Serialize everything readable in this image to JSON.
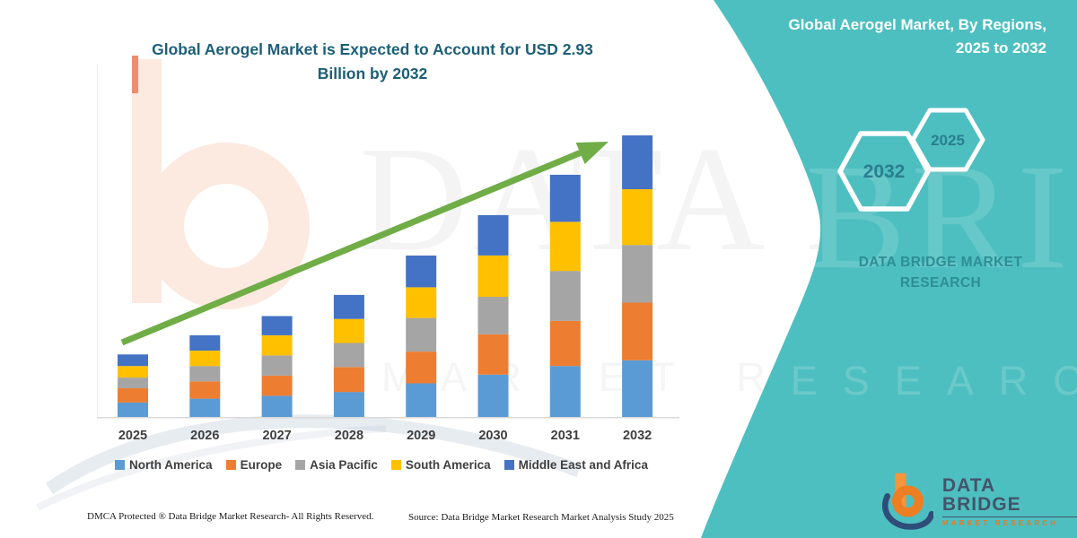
{
  "header": {
    "chart_title_line1": "Global Aerogel Market is Expected to Account for USD 2.93",
    "chart_title_line2": "Billion by 2032"
  },
  "side_panel": {
    "bg_color": "#4EBFC0",
    "title_line1": "Global Aerogel Market, By Regions,",
    "title_line2": "2025 to 2032",
    "hexagons": [
      {
        "label": "2032"
      },
      {
        "label": "2025"
      }
    ],
    "hexagon_text_color": "#2A7E8F",
    "brand_caption": "DATA BRIDGE MARKET RESEARCH",
    "logo": {
      "name": "DATA BRIDGE",
      "tagline": "MARKET RESEARCH"
    }
  },
  "watermark": {
    "big": "DATA BRIDGE",
    "sub": "MARKET RESEARCH"
  },
  "footer": {
    "left": "DMCA Protected ® Data Bridge Market Research-  All Rights Reserved.",
    "right": "Source: Data Bridge Market Research  Market Analysis Study 2025"
  },
  "chart_data": {
    "type": "bar",
    "subtype": "stacked",
    "title": "Global Aerogel Market is Expected to Account for USD 2.93 Billion by 2032",
    "unit": "USD Billion",
    "categories": [
      "2025",
      "2026",
      "2027",
      "2028",
      "2029",
      "2030",
      "2031",
      "2032"
    ],
    "series": [
      {
        "name": "North America",
        "color": "#5B9BD5",
        "values": [
          0.15,
          0.19,
          0.22,
          0.26,
          0.35,
          0.44,
          0.53,
          0.59
        ]
      },
      {
        "name": "Europe",
        "color": "#ED7D31",
        "values": [
          0.15,
          0.18,
          0.21,
          0.26,
          0.33,
          0.42,
          0.47,
          0.6
        ]
      },
      {
        "name": "Asia Pacific",
        "color": "#A5A5A5",
        "values": [
          0.11,
          0.16,
          0.21,
          0.25,
          0.35,
          0.39,
          0.52,
          0.6
        ]
      },
      {
        "name": "South America",
        "color": "#FFC000",
        "values": [
          0.12,
          0.16,
          0.21,
          0.25,
          0.32,
          0.43,
          0.51,
          0.58
        ]
      },
      {
        "name": "Middle East and Africa",
        "color": "#4472C4",
        "values": [
          0.12,
          0.16,
          0.2,
          0.25,
          0.33,
          0.42,
          0.49,
          0.56
        ]
      }
    ],
    "totals": [
      0.65,
      0.85,
      1.05,
      1.27,
      1.68,
      2.1,
      2.52,
      2.93
    ],
    "ylim": [
      0,
      2.93
    ],
    "grid": false,
    "legend_position": "bottom",
    "arrow_color": "#70AD47",
    "axis_line_color": "#D9D9D9",
    "axis_label_color": "#3F3F3F"
  }
}
